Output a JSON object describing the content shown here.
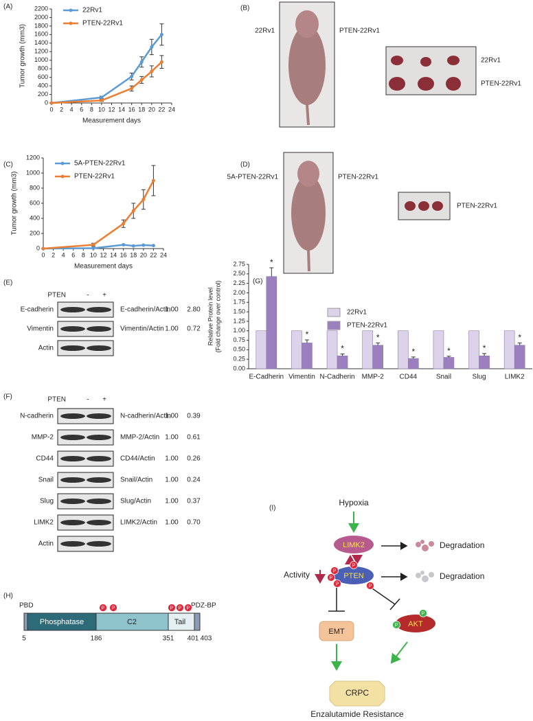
{
  "chart_data": [
    {
      "type": "line",
      "panel": "(A)",
      "y_label": "Tumor growth (mm3)",
      "x_label": "Measurement days",
      "x": [
        0,
        10,
        16,
        18,
        20,
        22
      ],
      "series": [
        {
          "name": "22Rv1",
          "color": "#5b9bd5",
          "values": [
            0,
            130,
            620,
            960,
            1310,
            1600
          ],
          "errors": [
            0,
            30,
            80,
            120,
            180,
            250
          ]
        },
        {
          "name": "PTEN-22Rv1",
          "color": "#ed7d31",
          "values": [
            0,
            60,
            340,
            540,
            740,
            960
          ],
          "errors": [
            0,
            20,
            60,
            80,
            130,
            150
          ]
        }
      ],
      "xlim": [
        0,
        24
      ],
      "xticks": [
        0,
        2,
        4,
        6,
        8,
        10,
        12,
        14,
        16,
        18,
        20,
        22,
        24
      ],
      "ylim": [
        0,
        2200
      ],
      "yticks": [
        0,
        200,
        400,
        600,
        800,
        1000,
        1200,
        1400,
        1600,
        1800,
        2000,
        2200
      ]
    },
    {
      "type": "line",
      "panel": "(C)",
      "y_label": "Tumor growth (mm3)",
      "x_label": "Measurement days",
      "x": [
        0,
        10,
        16,
        18,
        20,
        22
      ],
      "series": [
        {
          "name": "5A-PTEN-22Rv1",
          "color": "#5b9bd5",
          "values": [
            0,
            5,
            50,
            35,
            45,
            40
          ]
        },
        {
          "name": "PTEN-22Rv1",
          "color": "#ed7d31",
          "values": [
            0,
            50,
            330,
            500,
            650,
            900
          ],
          "errors": [
            0,
            20,
            50,
            100,
            130,
            200
          ]
        }
      ],
      "xlim": [
        0,
        24
      ],
      "xticks": [
        0,
        2,
        4,
        6,
        8,
        10,
        12,
        14,
        16,
        18,
        20,
        22,
        24
      ],
      "ylim": [
        0,
        1200
      ],
      "yticks": [
        0,
        200,
        400,
        600,
        800,
        1000,
        1200
      ]
    },
    {
      "type": "bar",
      "panel": "(G)",
      "y_label": [
        "Relative Protein level",
        "(Fold change over control)"
      ],
      "categories": [
        "E-Cadherin",
        "Vimentin",
        "N-Cadherin",
        "MMP-2",
        "CD44",
        "Snail",
        "Slug",
        "LIMK2"
      ],
      "series": [
        {
          "name": "22Rv1",
          "color": "#dcd3ea",
          "values": [
            1,
            1,
            1,
            1,
            1,
            1,
            1,
            1
          ]
        },
        {
          "name": "PTEN-22Rv1",
          "color": "#9b7fbf",
          "values": [
            2.43,
            0.68,
            0.34,
            0.62,
            0.27,
            0.3,
            0.34,
            0.62
          ],
          "errors": [
            0.23,
            0.08,
            0.05,
            0.06,
            0.04,
            0.03,
            0.06,
            0.06
          ]
        }
      ],
      "significance_labels": [
        "*",
        "*",
        "*",
        "*",
        "*",
        "*",
        "*",
        "*"
      ],
      "ylim": [
        0,
        2.75
      ],
      "yticks": [
        {
          "value": 0,
          "label": "0.00"
        },
        {
          "value": 0.25,
          "label": "0.25"
        },
        {
          "value": 0.5,
          "label": "0.50"
        },
        {
          "value": 0.75,
          "label": "0.75"
        },
        {
          "value": 1,
          "label": "1.00"
        },
        {
          "value": 1.25,
          "label": "1.25"
        },
        {
          "value": 1.5,
          "label": "1.50"
        },
        {
          "value": 1.75,
          "label": "1.75"
        },
        {
          "value": 2,
          "label": "2.00"
        },
        {
          "value": 2.25,
          "label": "2.25"
        },
        {
          "value": 2.5,
          "label": "2.50"
        },
        {
          "value": 2.75,
          "label": "2.75"
        }
      ]
    }
  ],
  "photos": [
    {
      "panel": "(B)",
      "mouse_left": "22Rv1",
      "mouse_right": "PTEN-22Rv1",
      "tumor_labels": [
        "22Rv1",
        "PTEN-22Rv1"
      ]
    },
    {
      "panel": "(D)",
      "mouse_left": "5A-PTEN-22Rv1",
      "mouse_right": "PTEN-22Rv1",
      "tumor_labels": [
        "PTEN-22Rv1"
      ]
    }
  ],
  "blots": [
    {
      "panel": "(E)",
      "header": [
        "PTEN",
        "-",
        "+"
      ],
      "rows": [
        [
          "E-cadherin",
          "E-cadherin/Actin",
          "1.00",
          "2.80"
        ],
        [
          "Vimentin",
          "Vimentin/Actin",
          "1.00",
          "0.72"
        ],
        [
          "Actin"
        ]
      ]
    },
    {
      "panel": "(F)",
      "header": [
        "PTEN",
        "-",
        "+"
      ],
      "rows": [
        [
          "N-cadherin",
          "N-cadherin/Actin",
          "1.00",
          "0.39"
        ],
        [
          "MMP-2",
          "MMP-2/Actin",
          "1.00",
          "0.61"
        ],
        [
          "CD44",
          "CD44/Actin",
          "1.00",
          "0.26"
        ],
        [
          "Snail",
          "Snail/Actin",
          "1.00",
          "0.24"
        ],
        [
          "Slug",
          "Slug/Actin",
          "1.00",
          "0.37"
        ],
        [
          "LIMK2",
          "LIMK2/Actin",
          "1.00",
          "0.70"
        ],
        [
          "Actin"
        ]
      ]
    }
  ],
  "domain": {
    "panel": "(H)",
    "labels": [
      "PBD",
      "PDZ-BP"
    ],
    "segments": [
      "Phosphatase",
      "C2",
      "Tail"
    ],
    "positions": [
      5,
      186,
      351,
      401,
      403
    ],
    "phospho": [
      "P",
      "P",
      "P",
      "P",
      "P"
    ]
  },
  "pathway": {
    "panel": "(I)",
    "hypoxia": "Hypoxia",
    "limk2": "LIMK2",
    "degradation_1": "Degradation",
    "pten": "PTEN",
    "degradation_2": "Degradation",
    "activity": "Activity",
    "akt": "AKT",
    "emt": "EMT",
    "crpc": "CRPC",
    "outcome": "Enzalutamide Resistance",
    "pten_phospho": [
      "P",
      "P",
      "P",
      "P",
      "P"
    ],
    "akt_phospho": [
      "P",
      "P"
    ]
  }
}
